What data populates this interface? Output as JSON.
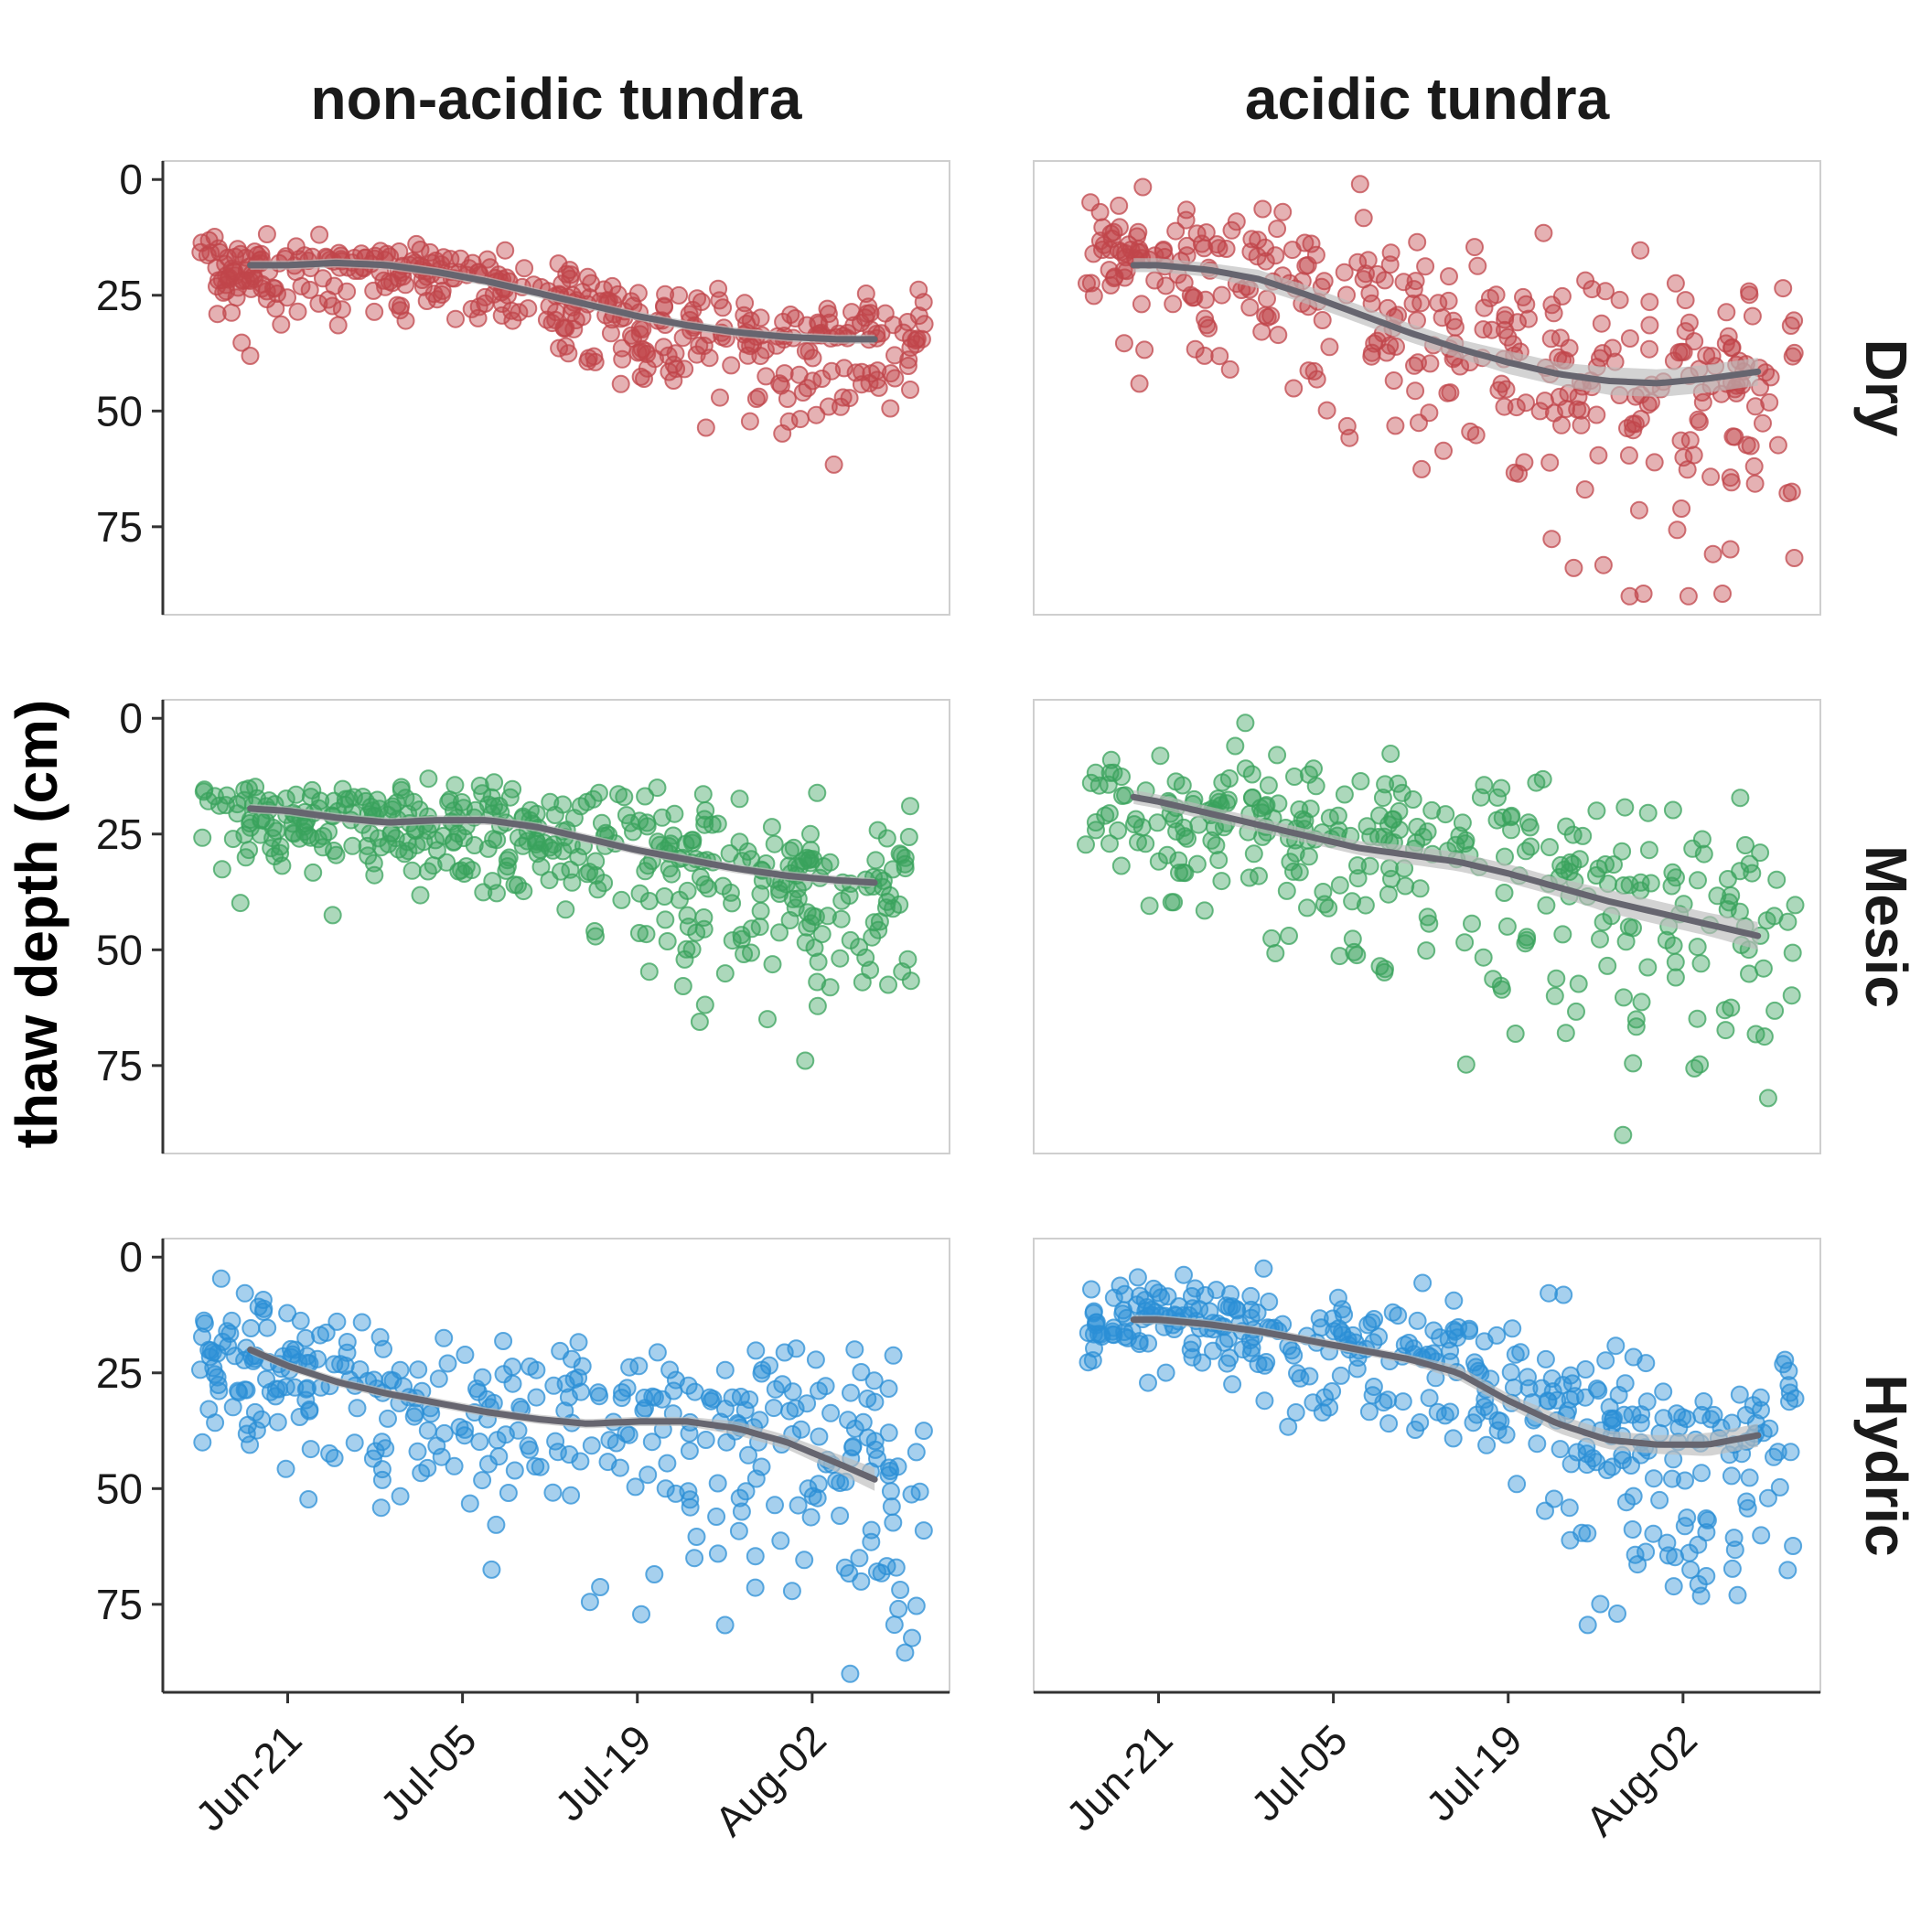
{
  "chart_data": {
    "type": "scatter",
    "ylabel": "thaw depth (cm)",
    "columns": [
      "non-acidic tundra",
      "acidic tundra"
    ],
    "rows": [
      "Dry",
      "Mesic",
      "Hydric"
    ],
    "y_ticks": [
      "0",
      "25",
      "50",
      "75"
    ],
    "y_tick_values": [
      0,
      25,
      50,
      75
    ],
    "ylim": [
      -4,
      94
    ],
    "y_reversed": true,
    "x_ticks": [
      "Jun-21",
      "Jul-05",
      "Jul-19",
      "Aug-02"
    ],
    "x_tick_values": [
      0,
      14,
      28,
      42
    ],
    "xlim": [
      -10,
      53
    ],
    "x_unit_note": "",
    "colors": {
      "Dry": "#c0464b",
      "Mesic": "#3aa35c",
      "Hydric": "#2b8fd6",
      "smooth": "#66656f",
      "band": "#bbbbbb"
    },
    "panels": [
      {
        "col": "non-acidic tundra",
        "row": "Dry",
        "x_range": [
          -7,
          51
        ],
        "y_center": [
          18,
          19,
          20,
          20,
          21,
          22,
          25,
          28,
          31,
          33,
          34,
          35,
          35,
          35
        ],
        "y_spread": [
          4,
          4,
          4,
          4,
          4,
          4,
          4,
          5,
          6,
          7,
          7,
          7,
          7,
          7
        ],
        "n": 420,
        "seed": 11,
        "smooth_x": [
          -3,
          0,
          4,
          8,
          12,
          16,
          20,
          24,
          28,
          32,
          36,
          40,
          44,
          47
        ],
        "smooth_y": [
          18.5,
          18.5,
          18.0,
          18.5,
          20.0,
          22.0,
          24.5,
          27.0,
          29.5,
          31.5,
          33.0,
          34.0,
          34.5,
          34.5
        ],
        "band": [
          1,
          1,
          1,
          1,
          1,
          1,
          1,
          1,
          1,
          1,
          1,
          1,
          1,
          1
        ]
      },
      {
        "col": "acidic tundra",
        "row": "Dry",
        "x_range": [
          -6,
          51
        ],
        "y_center": [
          15,
          17,
          20,
          22,
          25,
          28,
          31,
          34,
          37,
          40,
          43,
          46,
          47,
          45
        ],
        "y_spread": [
          6,
          7,
          8,
          9,
          10,
          10,
          11,
          12,
          12,
          13,
          14,
          14,
          13,
          12
        ],
        "n": 360,
        "seed": 23,
        "smooth_x": [
          -2,
          0,
          4,
          8,
          12,
          16,
          20,
          24,
          28,
          32,
          36,
          40,
          44,
          48
        ],
        "smooth_y": [
          18.5,
          18.5,
          19.5,
          21.5,
          25.0,
          29.0,
          33.0,
          36.5,
          39.5,
          42.0,
          43.5,
          44.0,
          43.0,
          41.5
        ],
        "band": [
          1.5,
          1.5,
          1.5,
          2,
          2,
          2,
          2,
          2,
          2.5,
          2.5,
          3,
          3,
          3,
          3
        ]
      },
      {
        "col": "non-acidic tundra",
        "row": "Mesic",
        "x_range": [
          -7,
          50
        ],
        "y_center": [
          18,
          20,
          22,
          22,
          23,
          23,
          24,
          26,
          29,
          31,
          34,
          37,
          37,
          36
        ],
        "y_spread": [
          5,
          5,
          5,
          5,
          5,
          5,
          5,
          7,
          8,
          9,
          10,
          11,
          10,
          9
        ],
        "n": 420,
        "seed": 37,
        "smooth_x": [
          -3,
          0,
          4,
          8,
          12,
          16,
          20,
          24,
          28,
          32,
          36,
          40,
          44,
          47
        ],
        "smooth_y": [
          19.5,
          20.0,
          21.5,
          22.5,
          22.0,
          22.0,
          23.5,
          26.0,
          28.5,
          30.5,
          32.5,
          34.0,
          35.0,
          35.5
        ],
        "band": [
          1,
          1,
          1,
          1,
          1,
          1,
          1,
          1,
          1,
          1,
          1,
          1,
          1,
          1
        ]
      },
      {
        "col": "acidic tundra",
        "row": "Mesic",
        "x_range": [
          -6,
          51
        ],
        "y_center": [
          16,
          18,
          20,
          23,
          25,
          27,
          29,
          31,
          33,
          36,
          39,
          42,
          45,
          47
        ],
        "y_spread": [
          6,
          7,
          8,
          9,
          10,
          10,
          11,
          11,
          12,
          13,
          14,
          14,
          14,
          13
        ],
        "n": 320,
        "seed": 51,
        "smooth_x": [
          -2,
          0,
          4,
          8,
          12,
          16,
          20,
          24,
          28,
          32,
          36,
          40,
          44,
          48
        ],
        "smooth_y": [
          17.0,
          18.0,
          20.5,
          23.0,
          25.5,
          28.0,
          29.5,
          31.0,
          33.5,
          36.5,
          39.5,
          42.0,
          44.5,
          47.0
        ],
        "band": [
          1.5,
          1.5,
          1.5,
          1.5,
          1.5,
          1.5,
          2,
          2,
          2,
          2,
          2.5,
          2.5,
          2.5,
          3
        ]
      },
      {
        "col": "non-acidic tundra",
        "row": "Hydric",
        "x_range": [
          -7,
          51
        ],
        "y_center": [
          18,
          22,
          26,
          29,
          31,
          33,
          35,
          36,
          38,
          38,
          37,
          40,
          45,
          52
        ],
        "y_spread": [
          6,
          7,
          7,
          8,
          9,
          10,
          10,
          10,
          11,
          12,
          12,
          13,
          14,
          15
        ],
        "n": 360,
        "seed": 67,
        "smooth_x": [
          -3,
          0,
          4,
          8,
          12,
          16,
          20,
          24,
          28,
          32,
          36,
          40,
          44,
          47
        ],
        "smooth_y": [
          20.0,
          23.5,
          27.0,
          29.5,
          31.5,
          33.5,
          35.0,
          36.0,
          35.5,
          35.5,
          37.0,
          40.0,
          44.5,
          48.0
        ],
        "band": [
          1,
          1,
          1,
          1,
          1,
          1,
          1,
          1,
          1,
          1,
          1.5,
          1.5,
          2,
          2.5
        ]
      },
      {
        "col": "acidic tundra",
        "row": "Hydric",
        "x_range": [
          -6,
          51
        ],
        "y_center": [
          12,
          13,
          14,
          16,
          18,
          20,
          22,
          25,
          30,
          35,
          40,
          46,
          44,
          38
        ],
        "y_spread": [
          4,
          4,
          5,
          5,
          6,
          7,
          8,
          9,
          10,
          11,
          12,
          14,
          14,
          12
        ],
        "n": 380,
        "seed": 83,
        "smooth_x": [
          -2,
          0,
          4,
          8,
          12,
          16,
          20,
          24,
          28,
          32,
          36,
          40,
          44,
          48
        ],
        "smooth_y": [
          13.5,
          13.5,
          14.5,
          16.0,
          18.0,
          20.0,
          22.0,
          25.0,
          31.0,
          36.0,
          39.5,
          40.5,
          40.5,
          38.5
        ],
        "band": [
          1,
          1,
          1,
          1,
          1,
          1,
          1,
          1.5,
          1.5,
          2,
          2,
          2,
          2.5,
          2.5
        ]
      }
    ]
  }
}
